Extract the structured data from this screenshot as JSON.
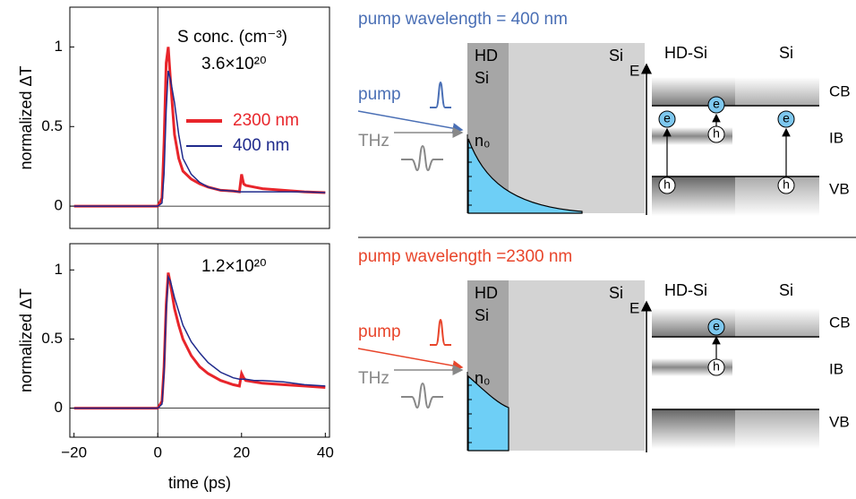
{
  "chart_data": [
    {
      "type": "line",
      "ylabel": "normalized  ΔT",
      "annotation": "S conc. (cm⁻³)",
      "concentration": "3.6×10²⁰",
      "x": [
        -20,
        -10,
        -1,
        0,
        1,
        1.5,
        2,
        2.5,
        3,
        4,
        5,
        6,
        8,
        10,
        12,
        15,
        18,
        19.5,
        20,
        20.5,
        21,
        23,
        25,
        30,
        35,
        40
      ],
      "series": [
        {
          "name": "2300 nm",
          "color": "#e8252b",
          "values": [
            0,
            0,
            0,
            0,
            0.05,
            0.4,
            0.9,
            1.0,
            0.8,
            0.45,
            0.3,
            0.22,
            0.17,
            0.14,
            0.12,
            0.1,
            0.095,
            0.09,
            0.2,
            0.14,
            0.13,
            0.12,
            0.11,
            0.1,
            0.09,
            0.085
          ]
        },
        {
          "name": "400 nm",
          "color": "#1f2a8c",
          "values": [
            0,
            0,
            0,
            0,
            0.02,
            0.2,
            0.6,
            0.85,
            0.8,
            0.65,
            0.45,
            0.3,
            0.2,
            0.15,
            0.12,
            0.1,
            0.095,
            0.09,
            0.09,
            0.09,
            0.09,
            0.09,
            0.09,
            0.09,
            0.09,
            0.085
          ]
        }
      ],
      "xlim": [
        -21,
        41
      ],
      "ylim": [
        -0.14,
        1.25
      ],
      "yticks": [
        0,
        0.5,
        1
      ]
    },
    {
      "type": "line",
      "ylabel": "normalized  ΔT",
      "xlabel": "time (ps)",
      "concentration": "1.2×10²⁰",
      "x": [
        -20,
        -10,
        -1,
        0,
        1,
        1.5,
        2,
        2.5,
        3,
        4,
        5,
        6,
        8,
        10,
        12,
        15,
        18,
        19.5,
        20,
        20.5,
        21,
        23,
        25,
        30,
        35,
        40
      ],
      "series": [
        {
          "color": "#e8252b",
          "values": [
            0,
            0,
            0,
            0,
            0.05,
            0.3,
            0.75,
            0.98,
            0.9,
            0.72,
            0.6,
            0.5,
            0.38,
            0.3,
            0.25,
            0.2,
            0.17,
            0.16,
            0.25,
            0.22,
            0.2,
            0.19,
            0.18,
            0.17,
            0.16,
            0.15
          ]
        },
        {
          "color": "#1f2a8c",
          "values": [
            0,
            0,
            0,
            0,
            0.03,
            0.25,
            0.7,
            0.95,
            0.92,
            0.8,
            0.7,
            0.6,
            0.48,
            0.4,
            0.33,
            0.26,
            0.22,
            0.21,
            0.21,
            0.21,
            0.21,
            0.2,
            0.2,
            0.19,
            0.17,
            0.16
          ]
        }
      ],
      "xlim": [
        -21,
        41
      ],
      "ylim": [
        -0.21,
        1.19
      ],
      "xticks": [
        {
          "value": -20,
          "label": "−20"
        },
        0,
        20,
        {
          "value": 40,
          "label": "40"
        }
      ],
      "yticks": [
        0,
        0.5,
        1
      ]
    }
  ],
  "diagrams": [
    {
      "title": "pump wavelength = 400 nm",
      "hd_si": [
        "HD",
        "Si"
      ],
      "si": "Si",
      "pump": "pump",
      "thz": "THz",
      "n0": "n₀",
      "energy": "E",
      "band_hd": "HD-Si",
      "band_si": "Si",
      "cb": "CB",
      "ib": "IB",
      "vb": "VB",
      "electrons": [
        "e",
        "e",
        "e"
      ],
      "holes": [
        "h",
        "h",
        "h"
      ]
    },
    {
      "title": "pump wavelength =2300 nm",
      "hd_si": [
        "HD",
        "Si"
      ],
      "si": "Si",
      "pump": "pump",
      "thz": "THz",
      "n0": "n₀",
      "energy": "E",
      "band_hd": "HD-Si",
      "band_si": "Si",
      "cb": "CB",
      "ib": "IB",
      "vb": "VB",
      "electrons": [
        "e"
      ],
      "holes": [
        "h"
      ]
    }
  ]
}
